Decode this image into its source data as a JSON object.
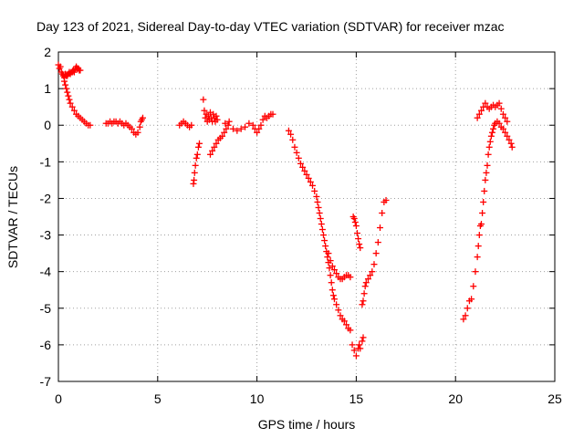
{
  "chart_data": {
    "type": "scatter",
    "title": "Day 123 of 2021, Sidereal Day-to-day VTEC variation (SDTVAR) for receiver mzac",
    "xlabel": "GPS time / hours",
    "ylabel": "SDTVAR / TECUs",
    "xlim": [
      0,
      25
    ],
    "ylim": [
      -7,
      2
    ],
    "xticks": [
      "0",
      "5",
      "10",
      "15",
      "20",
      "25"
    ],
    "yticks": [
      "-7",
      "-6",
      "-5",
      "-4",
      "-3",
      "-2",
      "-1",
      "0",
      "1",
      "2"
    ],
    "grid": true,
    "marker": "+",
    "color": "#ff0000",
    "points": [
      [
        0.0,
        1.65
      ],
      [
        0.05,
        1.55
      ],
      [
        0.1,
        1.6
      ],
      [
        0.15,
        1.45
      ],
      [
        0.2,
        1.4
      ],
      [
        0.25,
        1.35
      ],
      [
        0.3,
        1.3
      ],
      [
        0.35,
        1.4
      ],
      [
        0.4,
        1.35
      ],
      [
        0.45,
        1.35
      ],
      [
        0.5,
        1.4
      ],
      [
        0.55,
        1.45
      ],
      [
        0.6,
        1.4
      ],
      [
        0.65,
        1.45
      ],
      [
        0.7,
        1.45
      ],
      [
        0.75,
        1.5
      ],
      [
        0.8,
        1.45
      ],
      [
        0.85,
        1.55
      ],
      [
        0.9,
        1.6
      ],
      [
        0.95,
        1.55
      ],
      [
        1.0,
        1.55
      ],
      [
        1.05,
        1.5
      ],
      [
        1.1,
        1.5
      ],
      [
        0.3,
        1.2
      ],
      [
        0.35,
        1.1
      ],
      [
        0.4,
        1.0
      ],
      [
        0.45,
        0.9
      ],
      [
        0.5,
        0.8
      ],
      [
        0.55,
        0.7
      ],
      [
        0.6,
        0.6
      ],
      [
        0.7,
        0.5
      ],
      [
        0.8,
        0.4
      ],
      [
        0.9,
        0.3
      ],
      [
        1.0,
        0.25
      ],
      [
        1.1,
        0.2
      ],
      [
        1.2,
        0.15
      ],
      [
        1.3,
        0.1
      ],
      [
        1.4,
        0.05
      ],
      [
        1.5,
        0.0
      ],
      [
        1.6,
        0.0
      ],
      [
        2.4,
        0.05
      ],
      [
        2.5,
        0.05
      ],
      [
        2.6,
        0.1
      ],
      [
        2.7,
        0.05
      ],
      [
        2.8,
        0.1
      ],
      [
        2.9,
        0.1
      ],
      [
        3.0,
        0.05
      ],
      [
        3.1,
        0.1
      ],
      [
        3.2,
        0.05
      ],
      [
        3.3,
        0.0
      ],
      [
        3.4,
        0.05
      ],
      [
        3.5,
        0.0
      ],
      [
        3.6,
        -0.05
      ],
      [
        3.7,
        -0.1
      ],
      [
        3.8,
        -0.2
      ],
      [
        3.9,
        -0.25
      ],
      [
        4.0,
        -0.2
      ],
      [
        4.1,
        -0.05
      ],
      [
        4.15,
        0.1
      ],
      [
        4.2,
        0.15
      ],
      [
        4.25,
        0.2
      ],
      [
        6.1,
        0.0
      ],
      [
        6.2,
        0.05
      ],
      [
        6.3,
        0.1
      ],
      [
        6.4,
        0.05
      ],
      [
        6.5,
        0.0
      ],
      [
        6.6,
        -0.05
      ],
      [
        6.7,
        0.0
      ],
      [
        6.8,
        -1.6
      ],
      [
        6.83,
        -1.5
      ],
      [
        6.86,
        -1.3
      ],
      [
        6.9,
        -1.1
      ],
      [
        6.95,
        -0.9
      ],
      [
        7.0,
        -0.8
      ],
      [
        7.05,
        -0.6
      ],
      [
        7.1,
        -0.5
      ],
      [
        7.3,
        0.7
      ],
      [
        7.35,
        0.4
      ],
      [
        7.4,
        0.2
      ],
      [
        7.45,
        0.3
      ],
      [
        7.5,
        0.1
      ],
      [
        7.55,
        0.25
      ],
      [
        7.6,
        0.15
      ],
      [
        7.65,
        0.35
      ],
      [
        7.7,
        0.2
      ],
      [
        7.75,
        0.1
      ],
      [
        7.8,
        0.3
      ],
      [
        7.85,
        0.2
      ],
      [
        7.9,
        0.1
      ],
      [
        7.95,
        0.25
      ],
      [
        8.0,
        0.15
      ],
      [
        7.65,
        -0.8
      ],
      [
        7.75,
        -0.7
      ],
      [
        7.85,
        -0.6
      ],
      [
        7.95,
        -0.5
      ],
      [
        8.05,
        -0.4
      ],
      [
        8.15,
        -0.35
      ],
      [
        8.25,
        -0.3
      ],
      [
        8.35,
        -0.2
      ],
      [
        8.45,
        -0.1
      ],
      [
        8.55,
        0.0
      ],
      [
        8.4,
        0.05
      ],
      [
        8.6,
        0.1
      ],
      [
        8.8,
        -0.1
      ],
      [
        9.0,
        -0.15
      ],
      [
        9.2,
        -0.1
      ],
      [
        9.4,
        -0.05
      ],
      [
        9.6,
        0.05
      ],
      [
        9.8,
        0.0
      ],
      [
        9.9,
        -0.1
      ],
      [
        10.0,
        -0.2
      ],
      [
        10.1,
        -0.1
      ],
      [
        10.2,
        0.0
      ],
      [
        10.3,
        0.15
      ],
      [
        10.4,
        0.25
      ],
      [
        10.5,
        0.2
      ],
      [
        10.6,
        0.25
      ],
      [
        10.7,
        0.3
      ],
      [
        10.8,
        0.3
      ],
      [
        11.6,
        -0.15
      ],
      [
        11.7,
        -0.25
      ],
      [
        11.8,
        -0.4
      ],
      [
        11.9,
        -0.6
      ],
      [
        12.0,
        -0.75
      ],
      [
        12.1,
        -0.9
      ],
      [
        12.2,
        -1.05
      ],
      [
        12.3,
        -1.15
      ],
      [
        12.4,
        -1.25
      ],
      [
        12.5,
        -1.35
      ],
      [
        12.6,
        -1.45
      ],
      [
        12.7,
        -1.55
      ],
      [
        12.8,
        -1.65
      ],
      [
        12.9,
        -1.8
      ],
      [
        13.0,
        -1.95
      ],
      [
        13.05,
        -2.1
      ],
      [
        13.1,
        -2.25
      ],
      [
        13.15,
        -2.4
      ],
      [
        13.2,
        -2.55
      ],
      [
        13.25,
        -2.7
      ],
      [
        13.3,
        -2.85
      ],
      [
        13.35,
        -3.0
      ],
      [
        13.4,
        -3.15
      ],
      [
        13.45,
        -3.3
      ],
      [
        13.5,
        -3.45
      ],
      [
        13.55,
        -3.6
      ],
      [
        13.6,
        -3.75
      ],
      [
        13.65,
        -3.9
      ],
      [
        13.7,
        -4.1
      ],
      [
        13.75,
        -4.3
      ],
      [
        13.8,
        -4.5
      ],
      [
        13.85,
        -4.65
      ],
      [
        13.9,
        -4.75
      ],
      [
        14.0,
        -4.9
      ],
      [
        14.1,
        -5.05
      ],
      [
        14.2,
        -5.2
      ],
      [
        14.3,
        -5.3
      ],
      [
        14.4,
        -5.35
      ],
      [
        14.5,
        -5.45
      ],
      [
        14.6,
        -5.55
      ],
      [
        14.7,
        -5.6
      ],
      [
        13.6,
        -3.5
      ],
      [
        13.7,
        -3.7
      ],
      [
        13.8,
        -3.85
      ],
      [
        13.9,
        -3.95
      ],
      [
        14.0,
        -4.05
      ],
      [
        14.1,
        -4.15
      ],
      [
        14.2,
        -4.2
      ],
      [
        14.3,
        -4.2
      ],
      [
        14.4,
        -4.15
      ],
      [
        14.5,
        -4.1
      ],
      [
        14.6,
        -4.1
      ],
      [
        14.7,
        -4.15
      ],
      [
        14.8,
        -6.0
      ],
      [
        14.9,
        -6.15
      ],
      [
        15.0,
        -6.3
      ],
      [
        15.1,
        -6.1
      ],
      [
        15.15,
        -6.0
      ],
      [
        15.2,
        -6.1
      ],
      [
        15.3,
        -5.9
      ],
      [
        15.35,
        -5.8
      ],
      [
        14.85,
        -2.5
      ],
      [
        14.9,
        -2.55
      ],
      [
        14.95,
        -2.65
      ],
      [
        15.0,
        -2.75
      ],
      [
        15.05,
        -2.95
      ],
      [
        15.1,
        -3.1
      ],
      [
        15.15,
        -3.25
      ],
      [
        15.2,
        -3.35
      ],
      [
        15.3,
        -4.9
      ],
      [
        15.35,
        -4.8
      ],
      [
        15.4,
        -4.6
      ],
      [
        15.45,
        -4.4
      ],
      [
        15.5,
        -4.3
      ],
      [
        15.6,
        -4.2
      ],
      [
        15.7,
        -4.1
      ],
      [
        15.8,
        -4.0
      ],
      [
        15.9,
        -3.8
      ],
      [
        16.0,
        -3.5
      ],
      [
        16.1,
        -3.2
      ],
      [
        16.2,
        -2.8
      ],
      [
        16.3,
        -2.4
      ],
      [
        16.4,
        -2.1
      ],
      [
        16.5,
        -2.05
      ],
      [
        20.4,
        -5.3
      ],
      [
        20.5,
        -5.2
      ],
      [
        20.6,
        -5.0
      ],
      [
        20.7,
        -4.8
      ],
      [
        20.8,
        -4.75
      ],
      [
        20.9,
        -4.4
      ],
      [
        21.0,
        -4.0
      ],
      [
        21.1,
        -3.6
      ],
      [
        21.15,
        -3.3
      ],
      [
        21.2,
        -3.0
      ],
      [
        21.25,
        -2.75
      ],
      [
        21.3,
        -2.7
      ],
      [
        21.35,
        -2.4
      ],
      [
        21.4,
        -2.1
      ],
      [
        21.45,
        -1.8
      ],
      [
        21.5,
        -1.5
      ],
      [
        21.55,
        -1.3
      ],
      [
        21.6,
        -1.1
      ],
      [
        21.65,
        -0.8
      ],
      [
        21.7,
        -0.6
      ],
      [
        21.75,
        -0.45
      ],
      [
        21.8,
        -0.3
      ],
      [
        21.85,
        -0.2
      ],
      [
        21.9,
        -0.1
      ],
      [
        21.95,
        0.0
      ],
      [
        22.0,
        0.05
      ],
      [
        22.1,
        0.1
      ],
      [
        22.2,
        0.05
      ],
      [
        22.3,
        -0.05
      ],
      [
        22.4,
        -0.1
      ],
      [
        22.5,
        -0.2
      ],
      [
        22.6,
        -0.3
      ],
      [
        22.7,
        -0.4
      ],
      [
        22.8,
        -0.5
      ],
      [
        22.85,
        -0.6
      ],
      [
        21.1,
        0.2
      ],
      [
        21.2,
        0.3
      ],
      [
        21.3,
        0.4
      ],
      [
        21.4,
        0.5
      ],
      [
        21.5,
        0.6
      ],
      [
        21.6,
        0.5
      ],
      [
        21.7,
        0.45
      ],
      [
        21.8,
        0.5
      ],
      [
        21.9,
        0.55
      ],
      [
        22.0,
        0.5
      ],
      [
        22.1,
        0.55
      ],
      [
        22.2,
        0.6
      ],
      [
        22.3,
        0.45
      ],
      [
        22.4,
        0.3
      ],
      [
        22.5,
        0.2
      ],
      [
        22.6,
        0.1
      ]
    ]
  }
}
